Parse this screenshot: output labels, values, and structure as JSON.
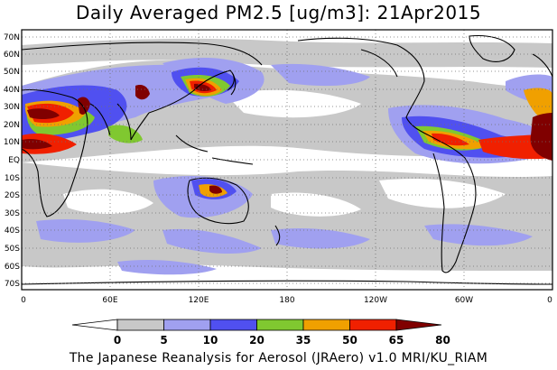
{
  "title": "Daily Averaged PM2.5 [ug/m3]: 21Apr2015",
  "credit": "The Japanese Reanalysis for Aerosol (JRAero) v1.0 MRI/KU_RIAM",
  "lat_ticks": [
    "70N",
    "60N",
    "50N",
    "40N",
    "30N",
    "20N",
    "10N",
    "EQ",
    "10S",
    "20S",
    "30S",
    "40S",
    "50S",
    "60S",
    "70S"
  ],
  "lon_ticks": [
    "0",
    "60E",
    "120E",
    "180",
    "120W",
    "60W",
    "0"
  ],
  "colorbar": {
    "labels": [
      "0",
      "5",
      "10",
      "20",
      "35",
      "50",
      "65",
      "80"
    ],
    "colors": [
      "#ffffff",
      "#c8c8c8",
      "#a0a0f0",
      "#5050f0",
      "#80c830",
      "#f0a000",
      "#f02000",
      "#800000"
    ]
  }
}
